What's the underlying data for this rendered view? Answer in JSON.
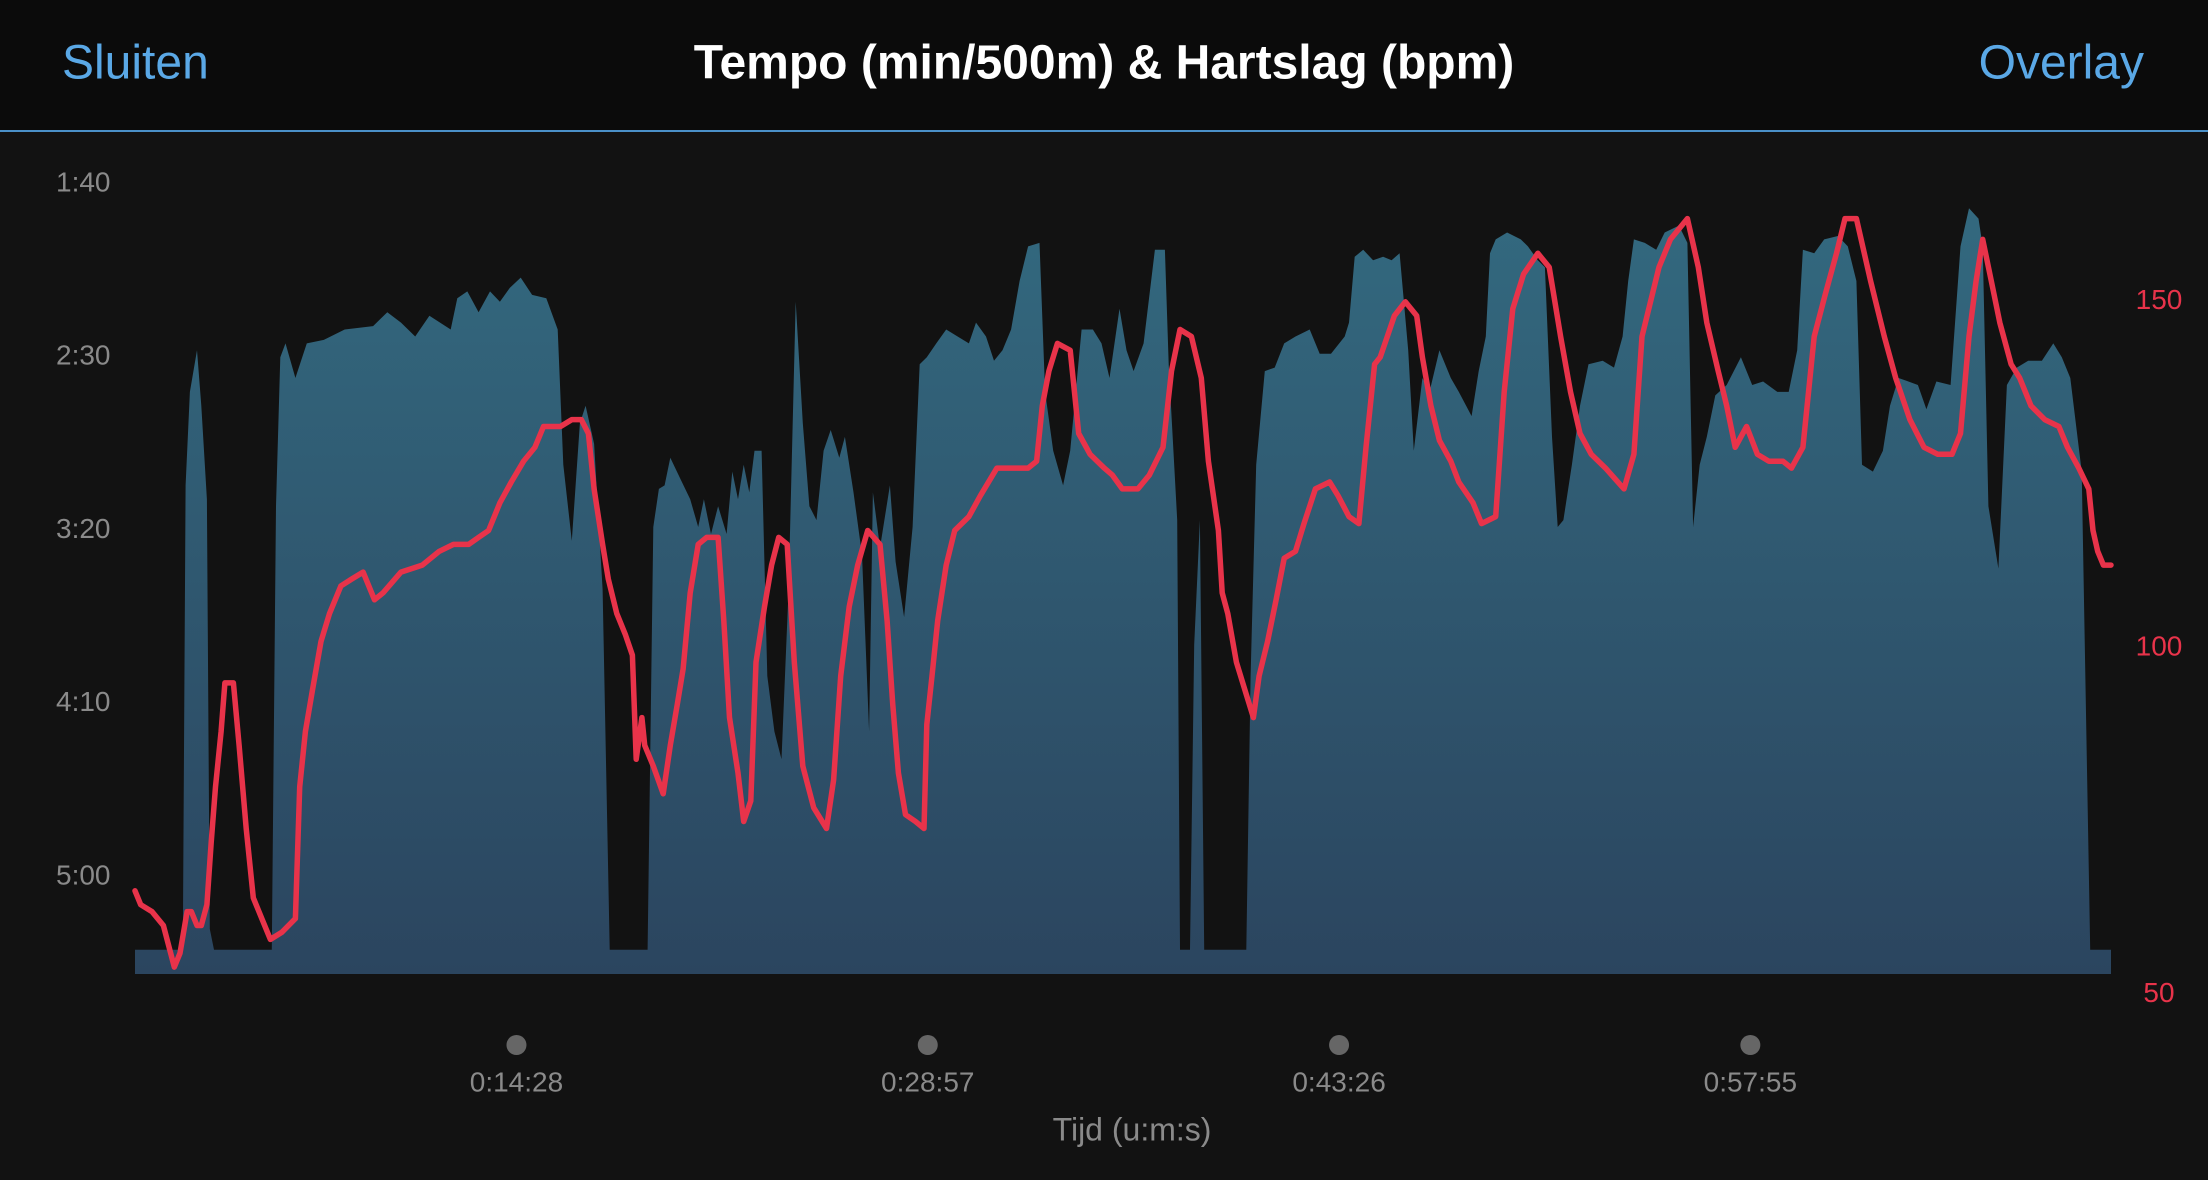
{
  "header": {
    "close_button": "Sluiten",
    "title": "Tempo (min/500m) & Hartslag (bpm)",
    "overlay_button": "Overlay"
  },
  "chart_data": {
    "type": "combo",
    "x_label": "Tijd (u:m:s)",
    "xlim": [
      62,
      4237
    ],
    "xticks": [
      {
        "value": 868,
        "label": "0:14:28"
      },
      {
        "value": 1737,
        "label": "0:28:57"
      },
      {
        "value": 2606,
        "label": "0:43:26"
      },
      {
        "value": 3475,
        "label": "0:57:55"
      }
    ],
    "ylim": [
      328,
      100
    ],
    "yticks": [
      {
        "value": 100,
        "label": "1:40"
      },
      {
        "value": 150,
        "label": "2:30"
      },
      {
        "value": 200,
        "label": "3:20"
      },
      {
        "value": 250,
        "label": "4:10"
      },
      {
        "value": 300,
        "label": "5:00"
      }
    ],
    "y2lim": [
      53,
      167
    ],
    "y2ticks": [
      50,
      100,
      150
    ],
    "grid": false,
    "series": [
      {
        "type": "area",
        "color": "#33697f",
        "gradient": [
          "#33697f",
          "#2b455f"
        ],
        "x": [
          62,
          163,
          169,
          178,
          193,
          202,
          214,
          220,
          229,
          351,
          360,
          369,
          380,
          401,
          425,
          461,
          505,
          565,
          595,
          624,
          654,
          684,
          729,
          743,
          764,
          788,
          812,
          833,
          854,
          877,
          901,
          931,
          955,
          967,
          985,
          1002,
          1014,
          1032,
          1050,
          1065,
          1145,
          1157,
          1169,
          1181,
          1193,
          1214,
          1235,
          1252,
          1264,
          1279,
          1294,
          1312,
          1324,
          1336,
          1348,
          1360,
          1371,
          1386,
          1398,
          1413,
          1428,
          1443,
          1458,
          1473,
          1487,
          1502,
          1517,
          1532,
          1550,
          1562,
          1580,
          1598,
          1613,
          1621,
          1636,
          1657,
          1669,
          1687,
          1705,
          1720,
          1735,
          1755,
          1776,
          1800,
          1824,
          1839,
          1860,
          1877,
          1895,
          1913,
          1931,
          1949,
          1973,
          1985,
          2002,
          2023,
          2038,
          2062,
          2086,
          2104,
          2121,
          2142,
          2157,
          2172,
          2193,
          2217,
          2238,
          2246,
          2264,
          2270,
          2291,
          2300,
          2312,
          2321,
          2410,
          2419,
          2431,
          2449,
          2470,
          2490,
          2514,
          2544,
          2565,
          2589,
          2618,
          2627,
          2639,
          2657,
          2678,
          2699,
          2717,
          2734,
          2752,
          2764,
          2782,
          2797,
          2818,
          2842,
          2859,
          2886,
          2901,
          2916,
          2925,
          2937,
          2961,
          2990,
          3005,
          3026,
          3041,
          3056,
          3068,
          3080,
          3098,
          3115,
          3133,
          3163,
          3187,
          3205,
          3217,
          3229,
          3252,
          3276,
          3294,
          3324,
          3342,
          3354,
          3368,
          3383,
          3401,
          3425,
          3455,
          3479,
          3502,
          3532,
          3556,
          3574,
          3586,
          3610,
          3631,
          3660,
          3681,
          3699,
          3711,
          3734,
          3755,
          3770,
          3788,
          3809,
          3829,
          3847,
          3868,
          3898,
          3919,
          3937,
          3957,
          3966,
          3978,
          3999,
          4017,
          4038,
          4062,
          4091,
          4115,
          4133,
          4151,
          4175,
          4193,
          4237
        ],
        "values": [
          321,
          321,
          187,
          160,
          148,
          164,
          191,
          315,
          321,
          321,
          193,
          150,
          146,
          156,
          146,
          145,
          142,
          141,
          137,
          140,
          144,
          138,
          142,
          133,
          131,
          137,
          131,
          134,
          130,
          127,
          132,
          133,
          142,
          181,
          203,
          169,
          164,
          175,
          217,
          321,
          321,
          199,
          188,
          187,
          179,
          185,
          191,
          199,
          191,
          201,
          193,
          201,
          183,
          191,
          181,
          189,
          177,
          177,
          242,
          258,
          266,
          217,
          134,
          169,
          193,
          197,
          177,
          171,
          179,
          173,
          189,
          207,
          258,
          189,
          205,
          187,
          209,
          225,
          199,
          152,
          150,
          146,
          142,
          144,
          146,
          140,
          144,
          151,
          148,
          142,
          128,
          118,
          117,
          160,
          177,
          187,
          177,
          142,
          142,
          146,
          156,
          136,
          148,
          154,
          146,
          119,
          119,
          152,
          197,
          321,
          321,
          233,
          197,
          321,
          321,
          242,
          181,
          154,
          153,
          146,
          144,
          142,
          149,
          149,
          144,
          140,
          121,
          119,
          122,
          121,
          122,
          120,
          148,
          177,
          156,
          160,
          148,
          156,
          160,
          167,
          154,
          144,
          120,
          116,
          114,
          116,
          118,
          122,
          124,
          173,
          199,
          197,
          181,
          164,
          152,
          151,
          153,
          144,
          128,
          116,
          117,
          119,
          114,
          112,
          117,
          199,
          181,
          173,
          161,
          158,
          150,
          158,
          157,
          160,
          160,
          148,
          119,
          120,
          116,
          115,
          118,
          128,
          181,
          183,
          177,
          164,
          156,
          157,
          158,
          165,
          157,
          158,
          118,
          107,
          110,
          118,
          193,
          211,
          158,
          153,
          151,
          151,
          146,
          150,
          156,
          183,
          321,
          321
        ]
      },
      {
        "type": "line",
        "axis": "y2",
        "color": "#e8334a",
        "x": [
          62,
          74,
          98,
          122,
          145,
          157,
          172,
          181,
          193,
          202,
          214,
          223,
          232,
          244,
          252,
          270,
          282,
          297,
          312,
          330,
          348,
          372,
          401,
          410,
          422,
          437,
          455,
          473,
          497,
          520,
          544,
          568,
          586,
          624,
          669,
          705,
          735,
          767,
          788,
          809,
          833,
          857,
          883,
          907,
          925,
          961,
          985,
          1005,
          1020,
          1032,
          1050,
          1062,
          1080,
          1098,
          1113,
          1121,
          1133,
          1139,
          1157,
          1178,
          1193,
          1208,
          1220,
          1235,
          1252,
          1270,
          1294,
          1306,
          1318,
          1336,
          1348,
          1363,
          1374,
          1392,
          1407,
          1422,
          1440,
          1455,
          1473,
          1496,
          1523,
          1538,
          1553,
          1571,
          1589,
          1610,
          1636,
          1651,
          1663,
          1675,
          1690,
          1711,
          1729,
          1735,
          1746,
          1758,
          1776,
          1794,
          1824,
          1848,
          1883,
          1919,
          1949,
          1967,
          1979,
          1993,
          2011,
          2038,
          2056,
          2080,
          2110,
          2127,
          2148,
          2181,
          2205,
          2234,
          2252,
          2270,
          2294,
          2315,
          2330,
          2351,
          2359,
          2371,
          2389,
          2407,
          2425,
          2437,
          2455,
          2473,
          2490,
          2514,
          2532,
          2556,
          2586,
          2604,
          2627,
          2648,
          2663,
          2681,
          2693,
          2708,
          2723,
          2746,
          2770,
          2782,
          2800,
          2818,
          2842,
          2859,
          2889,
          2907,
          2937,
          2955,
          2973,
          2996,
          3026,
          3050,
          3074,
          3095,
          3115,
          3139,
          3169,
          3208,
          3229,
          3246,
          3264,
          3282,
          3306,
          3342,
          3365,
          3383,
          3407,
          3425,
          3443,
          3467,
          3490,
          3514,
          3544,
          3562,
          3586,
          3610,
          3633,
          3657,
          3675,
          3699,
          3729,
          3758,
          3782,
          3812,
          3842,
          3871,
          3901,
          3919,
          3937,
          3952,
          3966,
          3984,
          4002,
          4026,
          4044,
          4068,
          4097,
          4127,
          4145,
          4169,
          4190,
          4199,
          4209,
          4221,
          4237
        ],
        "values": [
          65,
          63,
          62,
          60,
          54,
          56,
          62,
          62,
          60,
          60,
          63,
          72,
          80,
          88,
          95,
          95,
          86,
          74,
          64,
          61,
          58,
          59,
          61,
          80,
          88,
          94,
          101,
          105,
          109,
          110,
          111,
          107,
          108,
          111,
          112,
          114,
          115,
          115,
          116,
          117,
          121,
          124,
          127,
          129,
          132,
          132,
          133,
          133,
          131,
          123,
          115,
          110,
          105,
          102,
          99,
          84,
          90,
          86,
          83,
          79,
          86,
          92,
          97,
          108,
          115,
          116,
          116,
          104,
          90,
          82,
          75,
          78,
          98,
          106,
          112,
          116,
          115,
          98,
          83,
          77,
          74,
          81,
          96,
          106,
          112,
          117,
          115,
          104,
          92,
          82,
          76,
          75,
          74,
          89,
          96,
          104,
          112,
          117,
          119,
          122,
          126,
          126,
          126,
          127,
          135,
          140,
          144,
          143,
          131,
          128,
          126,
          125,
          123,
          123,
          125,
          129,
          140,
          146,
          145,
          139,
          127,
          117,
          108,
          105,
          98,
          94,
          90,
          96,
          101,
          107,
          113,
          114,
          118,
          123,
          124,
          122,
          119,
          118,
          129,
          141,
          142,
          145,
          148,
          150,
          148,
          142,
          135,
          130,
          127,
          124,
          121,
          118,
          119,
          137,
          149,
          154,
          157,
          155,
          145,
          137,
          131,
          128,
          126,
          123,
          128,
          145,
          150,
          155,
          159,
          162,
          155,
          147,
          140,
          135,
          129,
          132,
          128,
          127,
          127,
          126,
          129,
          145,
          151,
          157,
          162,
          162,
          153,
          145,
          139,
          133,
          129,
          128,
          128,
          131,
          145,
          153,
          159,
          153,
          147,
          141,
          139,
          135,
          133,
          132,
          129,
          126,
          123,
          117,
          114,
          112,
          112
        ]
      }
    ]
  }
}
